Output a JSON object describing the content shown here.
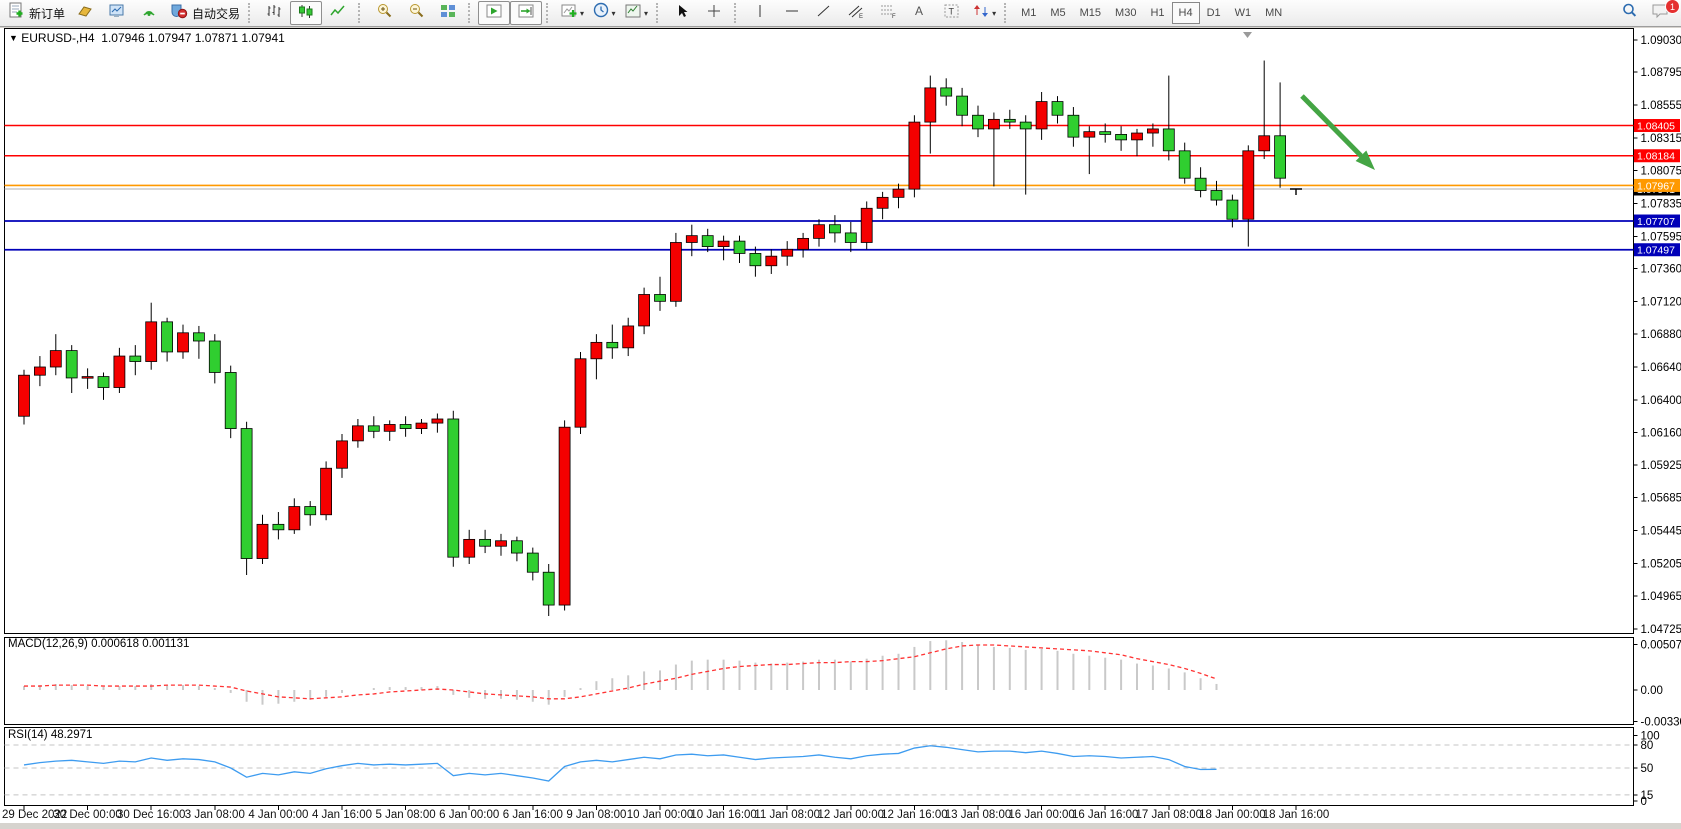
{
  "toolbar": {
    "new_order": "新订单",
    "auto_trading": "自动交易",
    "timeframes": [
      "M1",
      "M5",
      "M15",
      "M30",
      "H1",
      "H4",
      "D1",
      "W1",
      "MN"
    ],
    "active_timeframe": "H4",
    "notification_badge": "1",
    "icons": [
      "new-order-icon",
      "profile-icon",
      "market-watch-icon",
      "signal-icon",
      "auto-trading-icon",
      "bar-chart-icon",
      "candlestick-chart-icon",
      "line-chart-icon",
      "zoom-in-icon",
      "zoom-out-icon",
      "tile-windows-icon",
      "auto-scroll-icon",
      "shift-chart-icon",
      "indicators-icon",
      "periods-icon",
      "templates-icon",
      "cursor-icon",
      "crosshair-icon",
      "vertical-line-icon",
      "horizontal-line-icon",
      "trendline-icon",
      "channel-icon",
      "fibonacci-icon",
      "text-icon",
      "label-icon",
      "arrows-icon",
      "search-icon",
      "chat-icon"
    ]
  },
  "chart": {
    "title": "EURUSD-,H4",
    "ohlc": "1.07946 1.07947 1.07871 1.07941"
  },
  "indicators": {
    "macd_label": "MACD(12,26,9) 0.000618 0.001131",
    "rsi_label": "RSI(14) 48.2971"
  },
  "chart_data": {
    "type": "candlestick",
    "symbol": "EURUSD-",
    "period": "H4",
    "quote": {
      "open": 1.07946,
      "high": 1.07947,
      "low": 1.07871,
      "close": 1.07941
    },
    "colors": {
      "bull": "#f40000",
      "bear": "#30ce30",
      "wick": "#000000",
      "background": "#ffffff"
    },
    "price_axis": {
      "top": 1.0903,
      "bottom": 1.04725,
      "ticks": [
        1.0903,
        1.08795,
        1.08555,
        1.08315,
        1.08075,
        1.07835,
        1.07595,
        1.0736,
        1.0712,
        1.0688,
        1.0664,
        1.064,
        1.0616,
        1.05925,
        1.05685,
        1.05445,
        1.05205,
        1.04965,
        1.04725
      ]
    },
    "x_axis": {
      "bars_per_label": 4,
      "labels": [
        "29 Dec 2022",
        "30 Dec 00:00",
        "30 Dec 16:00",
        "3 Jan 08:00",
        "4 Jan 00:00",
        "4 Jan 16:00",
        "5 Jan 08:00",
        "6 Jan 00:00",
        "6 Jan 16:00",
        "9 Jan 08:00",
        "10 Jan 00:00",
        "10 Jan 16:00",
        "11 Jan 08:00",
        "12 Jan 00:00",
        "12 Jan 16:00",
        "13 Jan 08:00",
        "16 Jan 00:00",
        "16 Jan 16:00",
        "17 Jan 08:00",
        "18 Jan 00:00",
        "18 Jan 16:00"
      ]
    },
    "candles": [
      [
        1.0628,
        1.0662,
        1.0622,
        1.0658
      ],
      [
        1.0658,
        1.0672,
        1.065,
        1.0664
      ],
      [
        1.0664,
        1.0688,
        1.0658,
        1.0676
      ],
      [
        1.0676,
        1.068,
        1.0645,
        1.0656
      ],
      [
        1.0656,
        1.0663,
        1.0648,
        1.0657
      ],
      [
        1.0657,
        1.066,
        1.064,
        1.0649
      ],
      [
        1.0649,
        1.0678,
        1.0645,
        1.0672
      ],
      [
        1.0672,
        1.068,
        1.0658,
        1.0668
      ],
      [
        1.0668,
        1.0711,
        1.0662,
        1.0697
      ],
      [
        1.0697,
        1.07,
        1.0668,
        1.0675
      ],
      [
        1.0675,
        1.0695,
        1.067,
        1.0689
      ],
      [
        1.0689,
        1.0694,
        1.067,
        1.0683
      ],
      [
        1.0683,
        1.0688,
        1.0652,
        1.066
      ],
      [
        1.066,
        1.0665,
        1.0612,
        1.0619
      ],
      [
        1.0619,
        1.0624,
        1.0512,
        1.0524
      ],
      [
        1.0524,
        1.0556,
        1.052,
        1.0549
      ],
      [
        1.0549,
        1.0558,
        1.0538,
        1.0545
      ],
      [
        1.0545,
        1.0568,
        1.0542,
        1.0562
      ],
      [
        1.0562,
        1.0566,
        1.0548,
        1.0556
      ],
      [
        1.0556,
        1.0595,
        1.0552,
        1.059
      ],
      [
        1.059,
        1.0615,
        1.0583,
        1.061
      ],
      [
        1.061,
        1.0626,
        1.0605,
        1.0621
      ],
      [
        1.0621,
        1.0628,
        1.0612,
        1.0617
      ],
      [
        1.0617,
        1.0625,
        1.061,
        1.0622
      ],
      [
        1.0622,
        1.0628,
        1.0613,
        1.0619
      ],
      [
        1.0619,
        1.0626,
        1.0615,
        1.0623
      ],
      [
        1.0623,
        1.063,
        1.0616,
        1.0626
      ],
      [
        1.0626,
        1.0632,
        1.0518,
        1.0525
      ],
      [
        1.0525,
        1.0545,
        1.052,
        1.0538
      ],
      [
        1.0538,
        1.0545,
        1.0528,
        1.0533
      ],
      [
        1.0533,
        1.0542,
        1.0526,
        1.0537
      ],
      [
        1.0537,
        1.054,
        1.0522,
        1.0528
      ],
      [
        1.0528,
        1.0532,
        1.0508,
        1.0514
      ],
      [
        1.0514,
        1.052,
        1.0482,
        1.049
      ],
      [
        1.049,
        1.0625,
        1.0486,
        1.062
      ],
      [
        1.062,
        1.0675,
        1.0615,
        1.067
      ],
      [
        1.067,
        1.0688,
        1.0655,
        1.0682
      ],
      [
        1.0682,
        1.0695,
        1.067,
        1.0678
      ],
      [
        1.0678,
        1.07,
        1.0672,
        1.0694
      ],
      [
        1.0694,
        1.0722,
        1.0688,
        1.0717
      ],
      [
        1.0717,
        1.073,
        1.0705,
        1.0712
      ],
      [
        1.0712,
        1.0762,
        1.0708,
        1.0755
      ],
      [
        1.0755,
        1.0768,
        1.0745,
        1.076
      ],
      [
        1.076,
        1.0765,
        1.0748,
        1.0752
      ],
      [
        1.0752,
        1.076,
        1.0742,
        1.0756
      ],
      [
        1.0756,
        1.076,
        1.074,
        1.0747
      ],
      [
        1.0747,
        1.0752,
        1.073,
        1.0738
      ],
      [
        1.0738,
        1.075,
        1.0732,
        1.0745
      ],
      [
        1.0745,
        1.0756,
        1.0738,
        1.075
      ],
      [
        1.075,
        1.0762,
        1.0744,
        1.0758
      ],
      [
        1.0758,
        1.0772,
        1.0752,
        1.0768
      ],
      [
        1.0768,
        1.0775,
        1.0755,
        1.0762
      ],
      [
        1.0762,
        1.077,
        1.0748,
        1.0755
      ],
      [
        1.0755,
        1.0785,
        1.075,
        1.078
      ],
      [
        1.078,
        1.0792,
        1.0772,
        1.0788
      ],
      [
        1.0788,
        1.0798,
        1.078,
        1.0794
      ],
      [
        1.0794,
        1.0848,
        1.0788,
        1.0843
      ],
      [
        1.0843,
        1.0877,
        1.082,
        1.0868
      ],
      [
        1.0868,
        1.0875,
        1.0855,
        1.0862
      ],
      [
        1.0862,
        1.0868,
        1.084,
        1.0848
      ],
      [
        1.0848,
        1.0855,
        1.0832,
        1.0838
      ],
      [
        1.0838,
        1.085,
        1.0796,
        1.0845
      ],
      [
        1.0845,
        1.0852,
        1.0838,
        1.0843
      ],
      [
        1.0843,
        1.0848,
        1.079,
        1.0838
      ],
      [
        1.0838,
        1.0865,
        1.083,
        1.0858
      ],
      [
        1.0858,
        1.0862,
        1.0842,
        1.0848
      ],
      [
        1.0848,
        1.0854,
        1.0825,
        1.0832
      ],
      [
        1.0832,
        1.084,
        1.0805,
        1.0836
      ],
      [
        1.0836,
        1.0842,
        1.0828,
        1.0834
      ],
      [
        1.0834,
        1.084,
        1.0822,
        1.083
      ],
      [
        1.083,
        1.0838,
        1.0818,
        1.0835
      ],
      [
        1.0835,
        1.0842,
        1.0825,
        1.0838
      ],
      [
        1.0838,
        1.0877,
        1.0815,
        1.0822
      ],
      [
        1.0822,
        1.0828,
        1.0798,
        1.0802
      ],
      [
        1.0802,
        1.081,
        1.0788,
        1.0793
      ],
      [
        1.0793,
        1.08,
        1.0782,
        1.0786
      ],
      [
        1.0786,
        1.079,
        1.0766,
        1.0772
      ],
      [
        1.0772,
        1.0826,
        1.0752,
        1.0822
      ],
      [
        1.0822,
        1.0888,
        1.0816,
        1.0833
      ],
      [
        1.0833,
        1.0872,
        1.0795,
        1.0802
      ]
    ],
    "current_bar": {
      "open": 1.07946,
      "price": 1.07941
    },
    "hlines": [
      {
        "price": 1.08405,
        "label": "1.08405",
        "color": "#ff0000",
        "width": 1.4
      },
      {
        "price": 1.08184,
        "label": "1.08184",
        "color": "#ff0000",
        "width": 1.4
      },
      {
        "price": 1.07707,
        "label": "1.07707",
        "color": "#0000b8",
        "width": 1.7
      },
      {
        "price": 1.07497,
        "label": "1.07497",
        "color": "#0000b8",
        "width": 1.7
      },
      {
        "price": 1.07967,
        "label": "1.07967",
        "color": "#ff9900",
        "width": 1.7
      }
    ],
    "price_line": {
      "price": 1.07941,
      "label": "1.07941",
      "color": "#b0b0b0",
      "label_bg": "#000000"
    },
    "arrow": {
      "from": [
        1302,
        96
      ],
      "to": [
        1375,
        170
      ],
      "color": "#44a544"
    },
    "macd": {
      "name": "MACD",
      "params": "12,26,9",
      "value": 0.000618,
      "signal_value": 0.001131,
      "axis": [
        "0.005078",
        "0.00",
        "-0.003301"
      ],
      "hist_color": "#c9c9c9",
      "signal_color": "#ff3333",
      "hist": [
        0.0004,
        0.0005,
        0.0006,
        0.0005,
        0.0004,
        0.0003,
        0.0004,
        0.0004,
        0.0006,
        0.0005,
        0.0005,
        0.0004,
        0.0002,
        -0.0003,
        -0.0012,
        -0.0015,
        -0.0014,
        -0.0012,
        -0.001,
        -0.0007,
        -0.0003,
        0.0,
        0.0002,
        0.0003,
        0.0003,
        0.0003,
        0.0004,
        -0.0005,
        -0.0008,
        -0.0009,
        -0.0009,
        -0.001,
        -0.0012,
        -0.0015,
        -0.0007,
        0.0002,
        0.0009,
        0.0012,
        0.0015,
        0.0019,
        0.002,
        0.0026,
        0.003,
        0.0031,
        0.0031,
        0.003,
        0.0028,
        0.0027,
        0.0028,
        0.0029,
        0.0031,
        0.0031,
        0.0029,
        0.0032,
        0.0035,
        0.0037,
        0.0044,
        0.005,
        0.00508,
        0.0049,
        0.0046,
        0.0044,
        0.0043,
        0.0041,
        0.0042,
        0.004,
        0.0037,
        0.0035,
        0.0033,
        0.0031,
        0.0027,
        0.0025,
        0.0022,
        0.0018,
        0.0012,
        0.000618
      ],
      "signal": [
        0.0004,
        0.0004,
        0.0005,
        0.0005,
        0.0005,
        0.0004,
        0.0004,
        0.0004,
        0.0004,
        0.0005,
        0.0005,
        0.0005,
        0.0004,
        0.0003,
        -0.0001,
        -0.0004,
        -0.0007,
        -0.0008,
        -0.0009,
        -0.0008,
        -0.0007,
        -0.0005,
        -0.0004,
        -0.0002,
        -0.0001,
        0.0,
        0.0001,
        0.0,
        -0.0002,
        -0.0004,
        -0.0005,
        -0.0006,
        -0.0007,
        -0.0009,
        -0.0009,
        -0.0007,
        -0.0004,
        -0.0001,
        0.0002,
        0.0006,
        0.0009,
        0.0012,
        0.0016,
        0.0019,
        0.0022,
        0.0024,
        0.0025,
        0.0026,
        0.0026,
        0.0027,
        0.0028,
        0.0028,
        0.0029,
        0.0029,
        0.003,
        0.0032,
        0.0034,
        0.0038,
        0.0042,
        0.0045,
        0.0046,
        0.0046,
        0.0045,
        0.0044,
        0.0043,
        0.0042,
        0.0041,
        0.004,
        0.0038,
        0.0036,
        0.0032,
        0.0029,
        0.0026,
        0.0022,
        0.0017,
        0.001131
      ]
    },
    "rsi": {
      "name": "RSI",
      "params": "14",
      "value": 48.2971,
      "levels": [
        80,
        50,
        15
      ],
      "axis_labels": [
        "100",
        "80",
        "50",
        "15",
        "0"
      ],
      "color": "#3e9cf0",
      "values": [
        54,
        57,
        59,
        60,
        58,
        56,
        59,
        58,
        63,
        60,
        62,
        61,
        58,
        50,
        38,
        43,
        41,
        45,
        43,
        49,
        53,
        56,
        54,
        55,
        54,
        55,
        56,
        40,
        43,
        41,
        43,
        40,
        37,
        33,
        52,
        58,
        60,
        58,
        61,
        64,
        62,
        67,
        68,
        66,
        67,
        64,
        61,
        63,
        64,
        65,
        67,
        64,
        62,
        66,
        68,
        69,
        76,
        79,
        77,
        74,
        71,
        72,
        72,
        70,
        72,
        69,
        65,
        66,
        65,
        63,
        64,
        65,
        61,
        52,
        48,
        48.2971
      ]
    }
  }
}
